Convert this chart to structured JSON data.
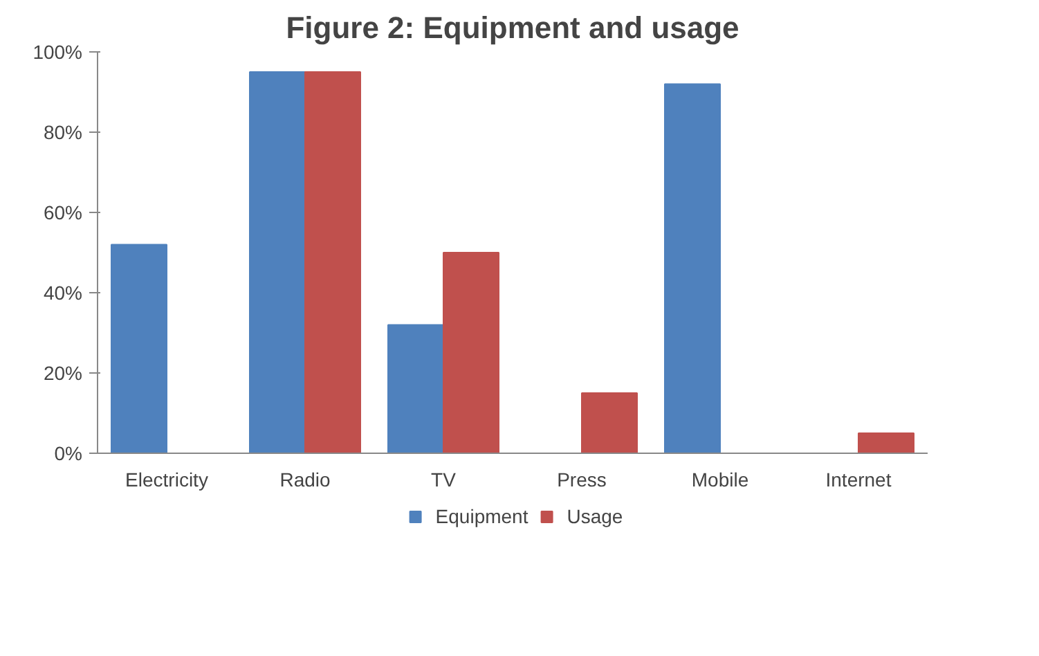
{
  "chart_data": {
    "type": "bar",
    "title": "Figure 2: Equipment and usage",
    "categories": [
      "Electricity",
      "Radio",
      "TV",
      "Press",
      "Mobile",
      "Internet"
    ],
    "series": [
      {
        "name": "Equipment",
        "color": "#4f81bd",
        "values": [
          52,
          95,
          32,
          null,
          92,
          null
        ]
      },
      {
        "name": "Usage",
        "color": "#c0504d",
        "values": [
          null,
          95,
          50,
          15,
          null,
          5
        ]
      }
    ],
    "ylim": [
      0,
      100
    ],
    "yticks": [
      {
        "value": 0,
        "label": "0%"
      },
      {
        "value": 20,
        "label": "20%"
      },
      {
        "value": 40,
        "label": "40%"
      },
      {
        "value": 60,
        "label": "60%"
      },
      {
        "value": 80,
        "label": "80%"
      },
      {
        "value": 100,
        "label": "100%"
      }
    ],
    "grid": false,
    "legend": "bottom"
  }
}
